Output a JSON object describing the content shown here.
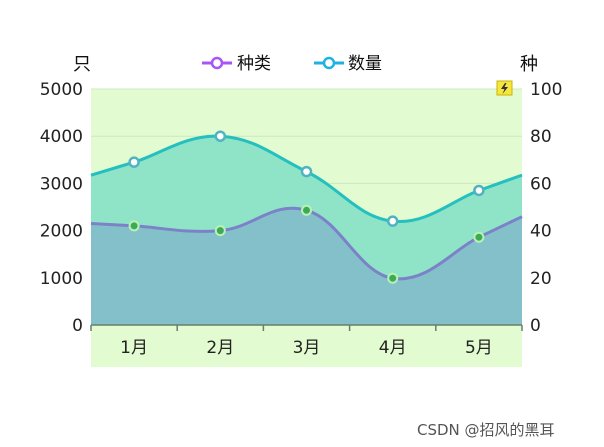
{
  "chart_data": {
    "type": "area",
    "categories": [
      "1月",
      "2月",
      "3月",
      "4月",
      "5月"
    ],
    "left_axis": {
      "unit": "只",
      "ticks": [
        "0",
        "1000",
        "2000",
        "3000",
        "4000",
        "5000"
      ],
      "ylim": [
        0,
        5000
      ]
    },
    "right_axis": {
      "unit": "种",
      "ticks": [
        "0",
        "20",
        "40",
        "60",
        "80",
        "100"
      ],
      "ylim": [
        0,
        100
      ]
    },
    "series": [
      {
        "name": "种类",
        "axis": "left",
        "values": [
          2100,
          2000,
          2430,
          990,
          1860
        ],
        "line_color": "#7b82c8",
        "area_color": "#84c0c9",
        "marker_color": "#3eaa54",
        "legend_color": "#a855f7"
      },
      {
        "name": "数量",
        "axis": "right",
        "values": [
          69,
          80,
          65,
          44,
          57
        ],
        "line_color": "#24bfbf",
        "area_color": "#8fe4c8",
        "marker_color": "#ffffff",
        "legend_color": "#1fb2e0"
      }
    ],
    "plot_background": "#e3fbd0",
    "grid": true,
    "legend_position": "top-center"
  },
  "watermark": "CSDN @招风的黑耳"
}
